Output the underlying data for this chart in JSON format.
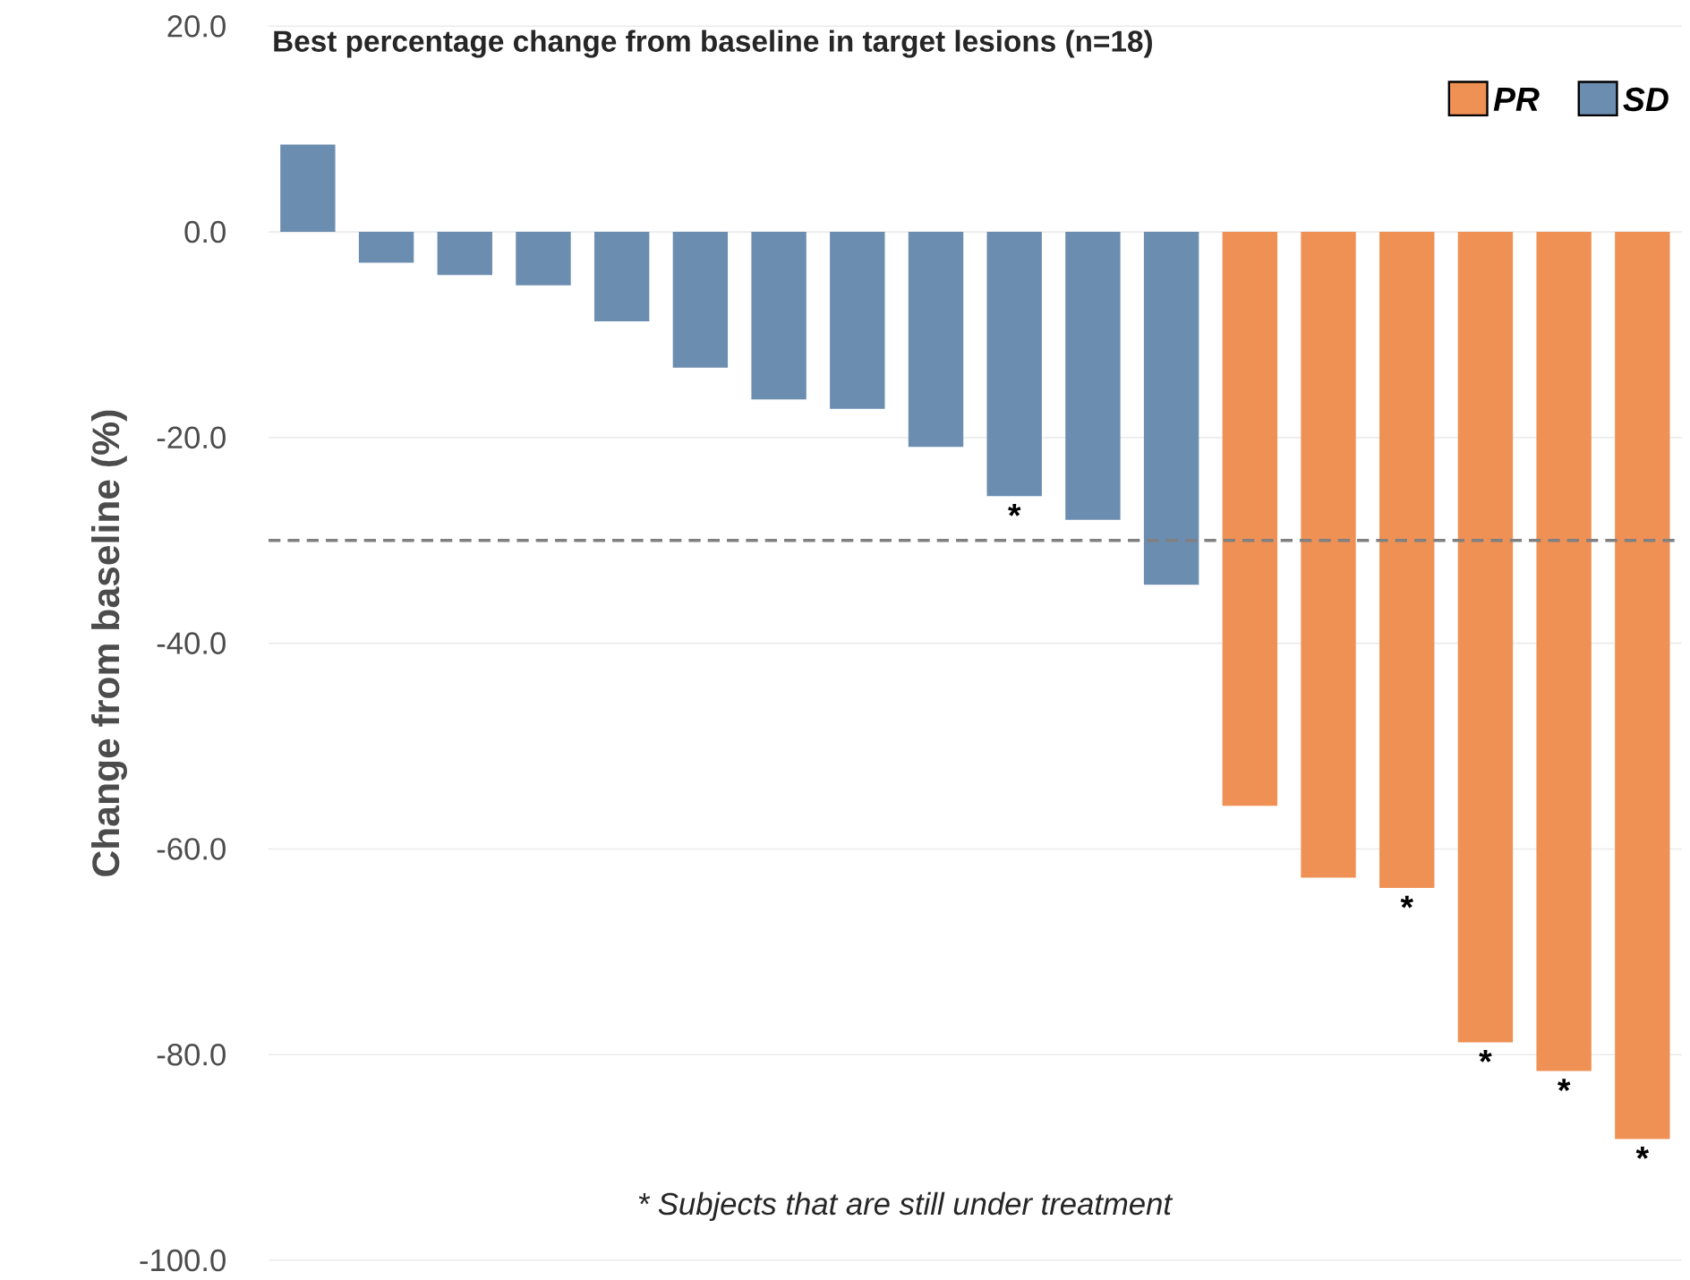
{
  "chart_data": {
    "type": "bar",
    "title": "Best percentage change from baseline in target lesions (n=18)",
    "ylabel": "Change from baseline (%)",
    "categories": [
      null,
      null,
      null,
      null,
      null,
      null,
      null,
      null,
      null,
      null,
      null,
      null,
      null,
      null,
      null,
      null,
      null,
      null
    ],
    "series": [
      {
        "name": "PR",
        "color": "#ef9155",
        "values": [
          null,
          null,
          null,
          null,
          null,
          null,
          null,
          null,
          null,
          null,
          null,
          null,
          -55.8,
          -62.8,
          -63.8,
          -78.8,
          -81.6,
          -88.2
        ],
        "value_labels": [
          null,
          null,
          null,
          null,
          null,
          null,
          null,
          null,
          null,
          null,
          null,
          null,
          null,
          null,
          "*",
          "*",
          "*",
          "*"
        ]
      },
      {
        "name": "SD",
        "color": "#6b8db0",
        "values": [
          8.5,
          -3.0,
          -4.2,
          -5.2,
          -8.7,
          -13.2,
          -16.3,
          -17.2,
          -20.9,
          -25.7,
          -28.0,
          -34.3,
          null,
          null,
          null,
          null,
          null,
          null
        ],
        "value_labels": [
          null,
          null,
          null,
          null,
          null,
          null,
          null,
          null,
          null,
          "*",
          null,
          null,
          null,
          null,
          null,
          null,
          null,
          null
        ]
      }
    ],
    "ylim": [
      -100,
      20
    ],
    "yticks": [
      {
        "value": -100,
        "label": "-100.0"
      },
      {
        "value": -80,
        "label": "-80.0"
      },
      {
        "value": -60,
        "label": "-60.0"
      },
      {
        "value": -40,
        "label": "-40.0"
      },
      {
        "value": -20,
        "label": "-20.0"
      },
      {
        "value": 0,
        "label": "0.0"
      },
      {
        "value": 20,
        "label": "20.0"
      }
    ],
    "grid": "y",
    "legend": "top right",
    "ref_lines": [
      {
        "axis": "y",
        "value": -30,
        "color": "#808080",
        "line_style": "dashed"
      }
    ],
    "annotations": [
      "* Subjects that are still under treatment"
    ]
  }
}
